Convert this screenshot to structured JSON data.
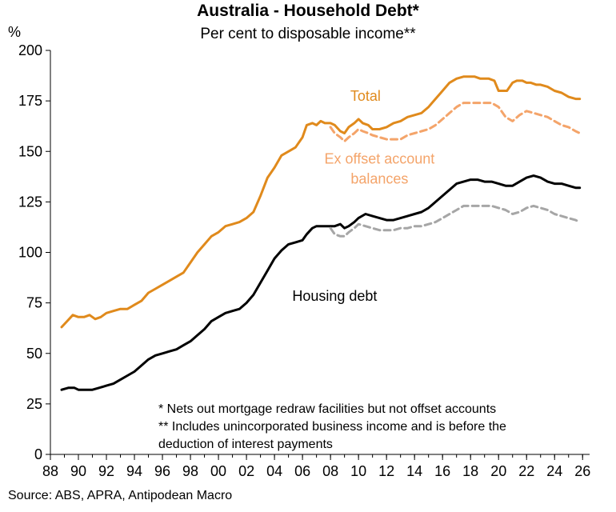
{
  "chart_data": {
    "type": "line",
    "title": "Australia - Household Debt*",
    "subtitle": "Per cent to disposable income**",
    "y_unit": "%",
    "ylim": [
      0,
      200
    ],
    "yticks": [
      0,
      25,
      50,
      75,
      100,
      125,
      150,
      175,
      200
    ],
    "xlim": [
      1988,
      2026.5
    ],
    "xticks": [
      {
        "value": 1988,
        "label": "88"
      },
      {
        "value": 1990,
        "label": "90"
      },
      {
        "value": 1992,
        "label": "92"
      },
      {
        "value": 1994,
        "label": "94"
      },
      {
        "value": 1996,
        "label": "96"
      },
      {
        "value": 1998,
        "label": "98"
      },
      {
        "value": 2000,
        "label": "00"
      },
      {
        "value": 2002,
        "label": "02"
      },
      {
        "value": 2004,
        "label": "04"
      },
      {
        "value": 2006,
        "label": "06"
      },
      {
        "value": 2008,
        "label": "08"
      },
      {
        "value": 2010,
        "label": "10"
      },
      {
        "value": 2012,
        "label": "12"
      },
      {
        "value": 2014,
        "label": "14"
      },
      {
        "value": 2016,
        "label": "16"
      },
      {
        "value": 2018,
        "label": "18"
      },
      {
        "value": 2020,
        "label": "20"
      },
      {
        "value": 2022,
        "label": "22"
      },
      {
        "value": 2024,
        "label": "24"
      },
      {
        "value": 2026,
        "label": "26"
      }
    ],
    "grid": false,
    "series": [
      {
        "name": "Total",
        "color": "#E08A1C",
        "style": "solid",
        "x": [
          1988.8,
          1989.2,
          1989.6,
          1990.0,
          1990.4,
          1990.8,
          1991.2,
          1991.6,
          1992.0,
          1992.5,
          1993.0,
          1993.5,
          1994.0,
          1994.5,
          1995.0,
          1995.5,
          1996.0,
          1996.5,
          1997.0,
          1997.5,
          1998.0,
          1998.5,
          1999.0,
          1999.5,
          2000.0,
          2000.5,
          2001.0,
          2001.5,
          2002.0,
          2002.5,
          2003.0,
          2003.5,
          2004.0,
          2004.5,
          2005.0,
          2005.5,
          2006.0,
          2006.3,
          2006.7,
          2007.0,
          2007.3,
          2007.6,
          2008.0,
          2008.3,
          2008.7,
          2009.0,
          2009.3,
          2009.7,
          2010.0,
          2010.3,
          2010.7,
          2011.0,
          2011.5,
          2012.0,
          2012.5,
          2013.0,
          2013.5,
          2014.0,
          2014.5,
          2015.0,
          2015.5,
          2016.0,
          2016.5,
          2017.0,
          2017.5,
          2018.0,
          2018.3,
          2018.7,
          2019.0,
          2019.3,
          2019.7,
          2020.0,
          2020.3,
          2020.6,
          2021.0,
          2021.3,
          2021.7,
          2022.0,
          2022.3,
          2022.7,
          2023.0,
          2023.5,
          2024.0,
          2024.5,
          2025.0,
          2025.5,
          2025.8
        ],
        "y": [
          63,
          66,
          69,
          68,
          68,
          69,
          67,
          68,
          70,
          71,
          72,
          72,
          74,
          76,
          80,
          82,
          84,
          86,
          88,
          90,
          95,
          100,
          104,
          108,
          110,
          113,
          114,
          115,
          117,
          120,
          128,
          137,
          142,
          148,
          150,
          152,
          157,
          163,
          164,
          163,
          165,
          164,
          164,
          163,
          160,
          159,
          162,
          164,
          166,
          164,
          163,
          161,
          161,
          162,
          164,
          165,
          167,
          168,
          169,
          172,
          176,
          180,
          184,
          186,
          187,
          187,
          187,
          186,
          186,
          186,
          185,
          180,
          180,
          180,
          184,
          185,
          185,
          184,
          184,
          183,
          183,
          182,
          180,
          179,
          177,
          176,
          176
        ]
      },
      {
        "name": "Ex offset account balances",
        "color": "#F4A46A",
        "style": "dashed",
        "x": [
          2008.0,
          2008.3,
          2008.7,
          2009.0,
          2009.3,
          2009.7,
          2010.0,
          2010.3,
          2010.7,
          2011.0,
          2011.5,
          2012.0,
          2012.5,
          2013.0,
          2013.5,
          2014.0,
          2014.5,
          2015.0,
          2015.5,
          2016.0,
          2016.5,
          2017.0,
          2017.5,
          2018.0,
          2018.5,
          2019.0,
          2019.5,
          2020.0,
          2020.5,
          2021.0,
          2021.5,
          2022.0,
          2022.5,
          2023.0,
          2023.5,
          2024.0,
          2024.5,
          2025.0,
          2025.5,
          2025.8
        ],
        "y": [
          162,
          159,
          157,
          155,
          157,
          159,
          161,
          160,
          159,
          158,
          157,
          156,
          156,
          156,
          158,
          159,
          160,
          161,
          163,
          166,
          169,
          172,
          174,
          174,
          174,
          174,
          174,
          172,
          167,
          165,
          168,
          170,
          169,
          168,
          167,
          165,
          163,
          162,
          160,
          159
        ]
      },
      {
        "name": "Housing debt",
        "color": "#000000",
        "style": "solid",
        "x": [
          1988.8,
          1989.3,
          1989.7,
          1990.0,
          1990.5,
          1991.0,
          1991.5,
          1992.0,
          1992.5,
          1993.0,
          1993.5,
          1994.0,
          1994.5,
          1995.0,
          1995.5,
          1996.0,
          1996.5,
          1997.0,
          1997.5,
          1998.0,
          1998.5,
          1999.0,
          1999.5,
          2000.0,
          2000.5,
          2001.0,
          2001.5,
          2002.0,
          2002.5,
          2003.0,
          2003.5,
          2004.0,
          2004.5,
          2005.0,
          2005.5,
          2006.0,
          2006.3,
          2006.7,
          2007.0,
          2007.5,
          2008.0,
          2008.3,
          2008.7,
          2009.0,
          2009.3,
          2009.7,
          2010.0,
          2010.5,
          2011.0,
          2011.5,
          2012.0,
          2012.5,
          2013.0,
          2013.5,
          2014.0,
          2014.5,
          2015.0,
          2015.5,
          2016.0,
          2016.5,
          2017.0,
          2017.5,
          2018.0,
          2018.5,
          2019.0,
          2019.5,
          2020.0,
          2020.5,
          2021.0,
          2021.5,
          2022.0,
          2022.5,
          2023.0,
          2023.5,
          2024.0,
          2024.5,
          2025.0,
          2025.5,
          2025.8
        ],
        "y": [
          32,
          33,
          33,
          32,
          32,
          32,
          33,
          34,
          35,
          37,
          39,
          41,
          44,
          47,
          49,
          50,
          51,
          52,
          54,
          56,
          59,
          62,
          66,
          68,
          70,
          71,
          72,
          75,
          79,
          85,
          91,
          97,
          101,
          104,
          105,
          106,
          109,
          112,
          113,
          113,
          113,
          113,
          114,
          112,
          113,
          115,
          117,
          119,
          118,
          117,
          116,
          116,
          117,
          118,
          119,
          120,
          122,
          125,
          128,
          131,
          134,
          135,
          136,
          136,
          135,
          135,
          134,
          133,
          133,
          135,
          137,
          138,
          137,
          135,
          134,
          134,
          133,
          132,
          132
        ]
      },
      {
        "name": "",
        "color": "#A6A6A6",
        "style": "dashed",
        "x": [
          2008.0,
          2008.3,
          2008.7,
          2009.0,
          2009.3,
          2009.7,
          2010.0,
          2010.5,
          2011.0,
          2011.5,
          2012.0,
          2012.5,
          2013.0,
          2013.5,
          2014.0,
          2014.5,
          2015.0,
          2015.5,
          2016.0,
          2016.5,
          2017.0,
          2017.5,
          2018.0,
          2018.5,
          2019.0,
          2019.5,
          2020.0,
          2020.5,
          2021.0,
          2021.5,
          2022.0,
          2022.5,
          2023.0,
          2023.5,
          2024.0,
          2024.5,
          2025.0,
          2025.5,
          2025.8
        ],
        "y": [
          112,
          109,
          108,
          108,
          110,
          112,
          114,
          113,
          112,
          111,
          111,
          111,
          112,
          112,
          113,
          113,
          114,
          115,
          117,
          119,
          121,
          123,
          123,
          123,
          123,
          123,
          122,
          121,
          119,
          120,
          122,
          123,
          122,
          121,
          119,
          118,
          117,
          116,
          115
        ]
      }
    ],
    "annotations": [
      {
        "text": "Total",
        "color": "#E08A1C",
        "x": 2010.5,
        "y": 175
      },
      {
        "text": "Ex offset account",
        "color": "#F4A46A",
        "x": 2011.5,
        "y": 144
      },
      {
        "text": "balances",
        "color": "#F4A46A",
        "x": 2011.5,
        "y": 134
      },
      {
        "text": "Housing debt",
        "color": "#000000",
        "x": 2008.3,
        "y": 76
      }
    ],
    "footnotes": [
      "* Nets out mortgage redraw facilities but not offset accounts",
      "** Includes unincorporated business income and is before the",
      "deduction of interest payments"
    ]
  },
  "source": "Source: ABS, APRA, Antipodean Macro"
}
